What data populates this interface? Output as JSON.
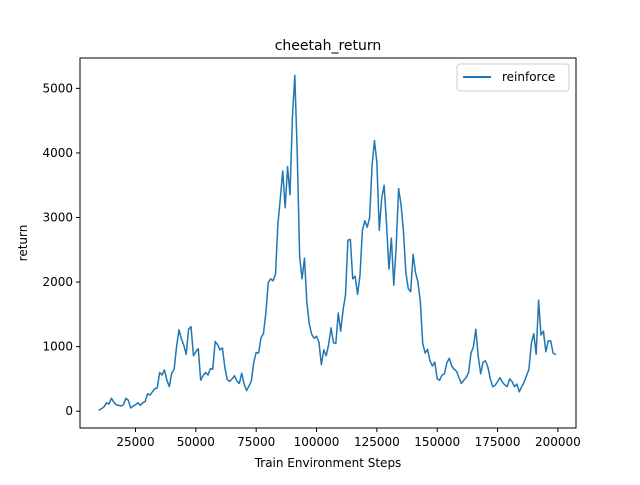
{
  "chart_data": {
    "type": "line",
    "title": "cheetah_return",
    "xlabel": "Train Environment Steps",
    "ylabel": "return",
    "xlim": [
      2000,
      207500
    ],
    "ylim": [
      -260,
      5470
    ],
    "xticks": [
      25000,
      50000,
      75000,
      100000,
      125000,
      150000,
      175000,
      200000
    ],
    "yticks": [
      0,
      1000,
      2000,
      3000,
      4000,
      5000
    ],
    "legend": {
      "placement": "top-right"
    },
    "grid": false,
    "series": [
      {
        "name": "reinforce",
        "color": "#1f77b4",
        "x": [
          10000,
          11000,
          12000,
          13000,
          14000,
          15000,
          16000,
          17000,
          18000,
          19000,
          20000,
          21000,
          22000,
          23000,
          24000,
          25000,
          26000,
          27000,
          28000,
          29000,
          30000,
          31000,
          32000,
          33000,
          34000,
          35000,
          36000,
          37000,
          38000,
          39000,
          40000,
          41000,
          42000,
          43000,
          44000,
          45000,
          46000,
          47000,
          48000,
          49000,
          50000,
          51000,
          52000,
          53000,
          54000,
          55000,
          56000,
          57000,
          58000,
          59000,
          60000,
          61000,
          62000,
          63000,
          64000,
          65000,
          66000,
          67000,
          68000,
          69000,
          70000,
          71000,
          72000,
          73000,
          74000,
          75000,
          76000,
          77000,
          78000,
          79000,
          80000,
          81000,
          82000,
          83000,
          84000,
          85000,
          86000,
          87000,
          88000,
          89000,
          90000,
          91000,
          92000,
          93000,
          94000,
          95000,
          96000,
          97000,
          98000,
          99000,
          100000,
          101000,
          102000,
          103000,
          104000,
          105000,
          106000,
          107000,
          108000,
          109000,
          110000,
          111000,
          112000,
          113000,
          114000,
          115000,
          116000,
          117000,
          118000,
          119000,
          120000,
          121000,
          122000,
          123000,
          124000,
          125000,
          126000,
          127000,
          128000,
          129000,
          130000,
          131000,
          132000,
          133000,
          134000,
          135000,
          136000,
          137000,
          138000,
          139000,
          140000,
          141000,
          142000,
          143000,
          144000,
          145000,
          146000,
          147000,
          148000,
          149000,
          150000,
          151000,
          152000,
          153000,
          154000,
          155000,
          156000,
          157000,
          158000,
          159000,
          160000,
          161000,
          162000,
          163000,
          164000,
          165000,
          166000,
          167000,
          168000,
          169000,
          170000,
          171000,
          172000,
          173000,
          174000,
          175000,
          176000,
          177000,
          178000,
          179000,
          180000,
          181000,
          182000,
          183000,
          184000,
          185000,
          186000,
          187000,
          188000,
          189000,
          190000,
          191000,
          192000,
          193000,
          194000,
          195000,
          196000,
          197000,
          198000,
          199000
        ],
        "y": [
          20,
          40,
          70,
          130,
          110,
          200,
          140,
          100,
          90,
          80,
          100,
          200,
          170,
          50,
          80,
          100,
          130,
          90,
          130,
          150,
          270,
          250,
          300,
          350,
          360,
          600,
          560,
          640,
          480,
          380,
          590,
          650,
          1000,
          1260,
          1120,
          1020,
          880,
          1270,
          1310,
          860,
          920,
          970,
          480,
          550,
          600,
          560,
          660,
          650,
          1080,
          1030,
          950,
          980,
          680,
          490,
          460,
          500,
          550,
          470,
          430,
          590,
          420,
          320,
          390,
          470,
          760,
          910,
          900,
          1140,
          1200,
          1520,
          1990,
          2050,
          2020,
          2120,
          2900,
          3300,
          3720,
          3150,
          3790,
          3350,
          4550,
          5200,
          4000,
          2400,
          2050,
          2370,
          1680,
          1350,
          1190,
          1130,
          1160,
          1070,
          720,
          950,
          860,
          1030,
          1290,
          1060,
          1050,
          1520,
          1240,
          1570,
          1800,
          2650,
          2660,
          2050,
          2090,
          1810,
          2100,
          2800,
          2950,
          2850,
          3000,
          3800,
          4190,
          3850,
          2800,
          3300,
          3500,
          2900,
          2200,
          2680,
          1950,
          2550,
          3450,
          3200,
          2800,
          2150,
          1900,
          1850,
          2430,
          2150,
          2000,
          1700,
          1050,
          900,
          960,
          780,
          700,
          760,
          500,
          480,
          560,
          580,
          750,
          820,
          700,
          650,
          620,
          520,
          430,
          480,
          520,
          600,
          900,
          1000,
          1270,
          850,
          580,
          760,
          780,
          680,
          500,
          380,
          400,
          460,
          520,
          450,
          410,
          380,
          500,
          460,
          380,
          420,
          300,
          380,
          450,
          550,
          650,
          1050,
          1200,
          880,
          1720,
          1180,
          1240,
          920,
          1090,
          1090,
          900,
          880
        ]
      }
    ]
  }
}
